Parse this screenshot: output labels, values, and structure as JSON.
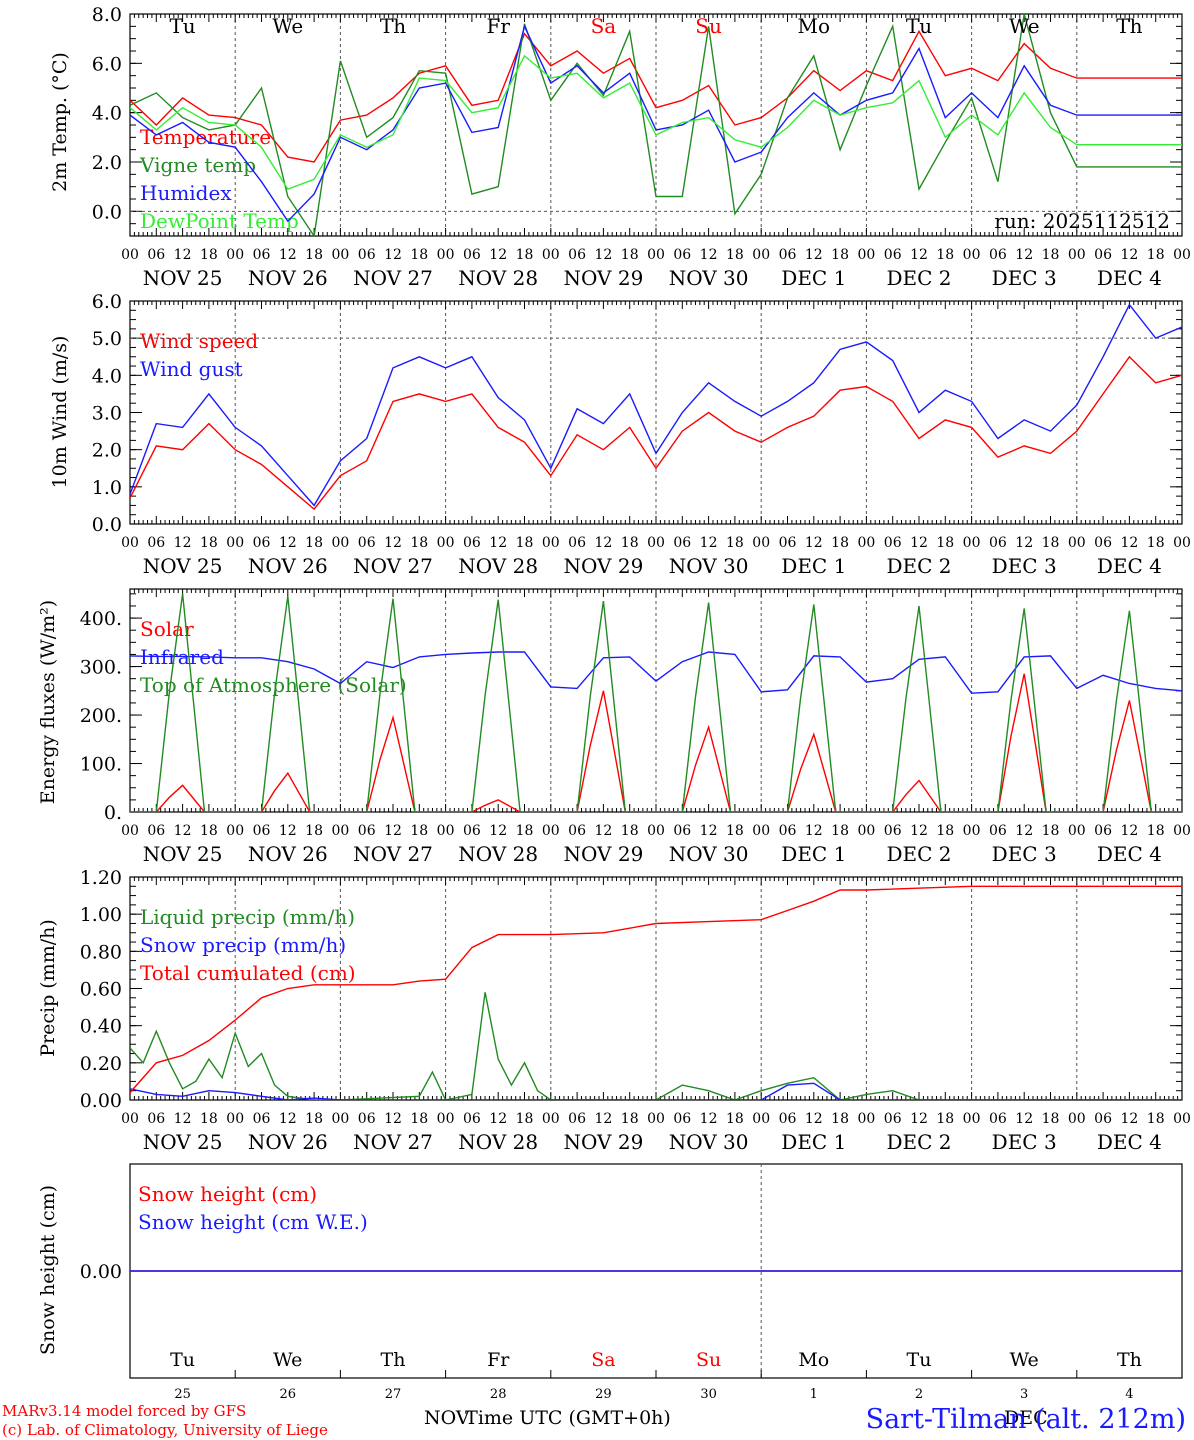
{
  "meta": {
    "model_line": "MARv3.14 model forced by GFS",
    "lab_line": "(c) Lab. of Climatology, University of Liege",
    "station": "Sart-Tilman (alt. 212m)",
    "run": "run: 2025112512",
    "x_axis_title": "Time UTC (GMT+0h)",
    "nov_label": "NOV",
    "dec_label": "DEC",
    "colors": {
      "red": "#ff0000",
      "green": "#228b22",
      "blue": "#1a1aff",
      "lime": "#33ee33",
      "black": "#000000"
    }
  },
  "days": {
    "weekdays": [
      "Tu",
      "We",
      "Th",
      "Fr",
      "Sa",
      "Su",
      "Mo",
      "Tu",
      "We",
      "Th"
    ],
    "weekend_index": [
      4,
      5
    ],
    "date_labels": [
      "NOV 25",
      "NOV 26",
      "NOV 27",
      "NOV 28",
      "NOV 29",
      "NOV 30",
      "DEC  1",
      "DEC  2",
      "DEC  3",
      "DEC  4"
    ],
    "day_numbers": [
      "25",
      "26",
      "27",
      "28",
      "29",
      "30",
      "1",
      "2",
      "3",
      "4"
    ],
    "hour_ticks": [
      "00",
      "06",
      "12",
      "18"
    ],
    "final_tick": "00"
  },
  "chart_data": [
    {
      "type": "line",
      "id": "temp",
      "ylabel": "2m Temp. (°C)",
      "ylim": [
        -1.0,
        8.0
      ],
      "yticks": [
        0,
        2,
        4,
        6,
        8
      ],
      "ytick_labels": [
        "0.0",
        "2.0",
        "4.0",
        "6.0",
        "8.0"
      ],
      "x_unit": "hours since NOV 25 00 UTC",
      "series": [
        {
          "name": "Temperature",
          "color": "#ff0000",
          "x": [
            0,
            6,
            12,
            18,
            24,
            30,
            36,
            42,
            48,
            54,
            60,
            66,
            72,
            78,
            84,
            90,
            96,
            102,
            108,
            114,
            120,
            126,
            132,
            138,
            144,
            150,
            156,
            162,
            168,
            174,
            180,
            186,
            192,
            198,
            204,
            210,
            216,
            222,
            228,
            234,
            240
          ],
          "values": [
            4.5,
            3.5,
            4.6,
            3.9,
            3.8,
            3.5,
            2.2,
            2.0,
            3.7,
            3.9,
            4.6,
            5.6,
            5.9,
            4.3,
            4.5,
            7.2,
            5.9,
            6.5,
            5.6,
            6.2,
            4.2,
            4.5,
            5.1,
            3.5,
            3.8,
            4.6,
            5.7,
            4.9,
            5.7,
            5.3,
            7.3,
            5.5,
            5.8,
            5.3,
            6.8,
            5.8,
            5.4,
            5.4,
            5.4,
            5.4,
            5.4
          ]
        },
        {
          "name": "Vigne temp",
          "color": "#228b22",
          "x": [
            0,
            6,
            12,
            18,
            24,
            30,
            36,
            42,
            48,
            54,
            60,
            66,
            72,
            78,
            84,
            90,
            96,
            102,
            108,
            114,
            120,
            126,
            132,
            138,
            144,
            150,
            156,
            162,
            168,
            174,
            180,
            186,
            192,
            198,
            204,
            210,
            216,
            222,
            228,
            234,
            240
          ],
          "values": [
            4.3,
            4.8,
            3.8,
            3.3,
            3.5,
            5.0,
            0.6,
            -1.0,
            6.1,
            3.0,
            3.8,
            5.7,
            5.6,
            0.7,
            1.0,
            7.6,
            4.5,
            6.0,
            4.7,
            7.3,
            0.6,
            0.6,
            7.5,
            -0.1,
            1.5,
            4.6,
            6.3,
            2.5,
            5.1,
            7.5,
            0.9,
            2.8,
            4.6,
            1.2,
            8.0,
            4.0,
            1.8,
            1.8,
            1.8,
            1.8,
            1.8
          ]
        },
        {
          "name": "Humidex",
          "color": "#1a1aff",
          "x": [
            0,
            6,
            12,
            18,
            24,
            30,
            36,
            42,
            48,
            54,
            60,
            66,
            72,
            78,
            84,
            90,
            96,
            102,
            108,
            114,
            120,
            126,
            132,
            138,
            144,
            150,
            156,
            162,
            168,
            174,
            180,
            186,
            192,
            198,
            204,
            210,
            216,
            222,
            228,
            234,
            240
          ],
          "values": [
            3.9,
            3.1,
            3.6,
            2.8,
            2.6,
            1.2,
            -0.4,
            0.7,
            3.0,
            2.5,
            3.3,
            5.0,
            5.2,
            3.2,
            3.4,
            7.5,
            5.2,
            5.9,
            4.8,
            5.6,
            3.3,
            3.5,
            4.1,
            2.0,
            2.4,
            3.8,
            4.8,
            3.9,
            4.5,
            4.8,
            6.6,
            3.8,
            4.8,
            3.8,
            5.9,
            4.3,
            3.9,
            3.9,
            3.9,
            3.9,
            3.9
          ]
        },
        {
          "name": "DewPoint Temp",
          "color": "#33ee33",
          "x": [
            0,
            6,
            12,
            18,
            24,
            30,
            36,
            42,
            48,
            54,
            60,
            66,
            72,
            78,
            84,
            90,
            96,
            102,
            108,
            114,
            120,
            126,
            132,
            138,
            144,
            150,
            156,
            162,
            168,
            174,
            180,
            186,
            192,
            198,
            204,
            210,
            216,
            222,
            228,
            234,
            240
          ],
          "values": [
            4.2,
            3.3,
            4.2,
            3.6,
            3.5,
            2.6,
            0.9,
            1.3,
            3.1,
            2.6,
            3.1,
            5.4,
            5.3,
            4.0,
            4.2,
            6.3,
            5.4,
            5.6,
            4.6,
            5.2,
            3.1,
            3.6,
            3.8,
            2.9,
            2.6,
            3.4,
            4.5,
            3.9,
            4.2,
            4.4,
            5.3,
            3.0,
            3.9,
            3.1,
            4.8,
            3.4,
            2.7,
            2.7,
            2.7,
            2.7,
            2.7
          ]
        }
      ]
    },
    {
      "type": "line",
      "id": "wind",
      "ylabel": "10m Wind (m/s)",
      "ylim": [
        0,
        6
      ],
      "yticks": [
        0,
        1,
        2,
        3,
        4,
        5,
        6
      ],
      "ytick_labels": [
        "0.0",
        "1.0",
        "2.0",
        "3.0",
        "4.0",
        "5.0",
        "6.0"
      ],
      "series": [
        {
          "name": "Wind speed",
          "color": "#ff0000",
          "x": [
            0,
            6,
            12,
            18,
            24,
            30,
            36,
            42,
            48,
            54,
            60,
            66,
            72,
            78,
            84,
            90,
            96,
            102,
            108,
            114,
            120,
            126,
            132,
            138,
            144,
            150,
            156,
            162,
            168,
            174,
            180,
            186,
            192,
            198,
            204,
            210,
            216,
            222,
            228,
            234,
            240
          ],
          "values": [
            0.7,
            2.1,
            2.0,
            2.7,
            2.0,
            1.6,
            1.0,
            0.4,
            1.3,
            1.7,
            3.3,
            3.5,
            3.3,
            3.5,
            2.6,
            2.2,
            1.3,
            2.4,
            2.0,
            2.6,
            1.5,
            2.5,
            3.0,
            2.5,
            2.2,
            2.6,
            2.9,
            3.6,
            3.7,
            3.3,
            2.3,
            2.8,
            2.6,
            1.8,
            2.1,
            1.9,
            2.5,
            3.5,
            4.5,
            3.8,
            4.0
          ]
        },
        {
          "name": "Wind gust",
          "color": "#1a1aff",
          "x": [
            0,
            6,
            12,
            18,
            24,
            30,
            36,
            42,
            48,
            54,
            60,
            66,
            72,
            78,
            84,
            90,
            96,
            102,
            108,
            114,
            120,
            126,
            132,
            138,
            144,
            150,
            156,
            162,
            168,
            174,
            180,
            186,
            192,
            198,
            204,
            210,
            216,
            222,
            228,
            234,
            240
          ],
          "values": [
            0.8,
            2.7,
            2.6,
            3.5,
            2.6,
            2.1,
            1.3,
            0.5,
            1.7,
            2.3,
            4.2,
            4.5,
            4.2,
            4.5,
            3.4,
            2.8,
            1.5,
            3.1,
            2.7,
            3.5,
            1.9,
            3.0,
            3.8,
            3.3,
            2.9,
            3.3,
            3.8,
            4.7,
            4.9,
            4.4,
            3.0,
            3.6,
            3.3,
            2.3,
            2.8,
            2.5,
            3.2,
            4.5,
            5.9,
            5.0,
            5.3
          ]
        }
      ]
    },
    {
      "type": "line",
      "id": "flux",
      "ylabel": "Energy fluxes (W/m²)",
      "ylim": [
        0,
        460
      ],
      "yticks": [
        0,
        100,
        200,
        300,
        400
      ],
      "ytick_labels": [
        "0.",
        "100.",
        "200.",
        "300.",
        "400."
      ],
      "series": [
        {
          "name": "Solar",
          "color": "#ff0000",
          "peaks_x": [
            12,
            36,
            60,
            84,
            108,
            132,
            156,
            180,
            204,
            228
          ],
          "peaks": [
            55,
            80,
            195,
            25,
            250,
            175,
            160,
            65,
            285,
            230
          ]
        },
        {
          "name": "Infrared",
          "color": "#1a1aff",
          "x": [
            0,
            6,
            12,
            18,
            24,
            30,
            36,
            42,
            48,
            54,
            60,
            66,
            72,
            78,
            84,
            90,
            96,
            102,
            108,
            114,
            120,
            126,
            132,
            138,
            144,
            150,
            156,
            162,
            168,
            174,
            180,
            186,
            192,
            198,
            204,
            210,
            216,
            222,
            228,
            234,
            240
          ],
          "values": [
            322,
            321,
            321,
            320,
            318,
            318,
            310,
            295,
            265,
            310,
            298,
            320,
            325,
            328,
            330,
            330,
            258,
            255,
            318,
            320,
            270,
            310,
            330,
            325,
            248,
            252,
            322,
            320,
            268,
            275,
            315,
            320,
            245,
            248,
            320,
            322,
            255,
            282,
            265,
            255,
            250
          ]
        },
        {
          "name": "Top of Atmosphere (Solar)",
          "color": "#228b22",
          "peaks_x": [
            12,
            36,
            60,
            84,
            108,
            132,
            156,
            180,
            204,
            228
          ],
          "peaks": [
            450,
            445,
            440,
            438,
            435,
            432,
            428,
            425,
            420,
            415
          ]
        }
      ]
    },
    {
      "type": "line",
      "id": "precip",
      "ylabel": "Precip (mm/h)",
      "ylim": [
        0,
        1.2
      ],
      "yticks": [
        0,
        0.2,
        0.4,
        0.6,
        0.8,
        1.0,
        1.2
      ],
      "ytick_labels": [
        "0.00",
        "0.20",
        "0.40",
        "0.60",
        "0.80",
        "1.00",
        "1.20"
      ],
      "series": [
        {
          "name": "Liquid precip (mm/h)",
          "color": "#228b22",
          "x": [
            0,
            3,
            6,
            9,
            12,
            15,
            18,
            21,
            24,
            27,
            30,
            33,
            36,
            42,
            48,
            66,
            69,
            72,
            78,
            81,
            84,
            87,
            90,
            93,
            96,
            120,
            126,
            132,
            138,
            144,
            150,
            156,
            162,
            168,
            174,
            180,
            240
          ],
          "values": [
            0.28,
            0.2,
            0.37,
            0.2,
            0.06,
            0.1,
            0.22,
            0.12,
            0.36,
            0.18,
            0.25,
            0.08,
            0.02,
            0.0,
            0.0,
            0.02,
            0.15,
            0.0,
            0.03,
            0.58,
            0.22,
            0.08,
            0.2,
            0.05,
            0.0,
            0.0,
            0.08,
            0.05,
            0.0,
            0.05,
            0.09,
            0.12,
            0.0,
            0.03,
            0.05,
            0.0,
            0.0
          ]
        },
        {
          "name": "Snow precip (mm/h)",
          "color": "#1a1aff",
          "x": [
            0,
            6,
            12,
            18,
            24,
            30,
            36,
            42,
            48,
            144,
            150,
            156,
            162,
            168,
            240
          ],
          "values": [
            0.06,
            0.03,
            0.02,
            0.05,
            0.04,
            0.02,
            0.0,
            0.01,
            0.0,
            0.0,
            0.08,
            0.09,
            0.0,
            0.0,
            0.0
          ]
        },
        {
          "name": "Total cumulated (cm)",
          "color": "#ff0000",
          "x": [
            0,
            6,
            12,
            18,
            24,
            30,
            36,
            42,
            48,
            60,
            66,
            72,
            78,
            84,
            96,
            108,
            120,
            132,
            144,
            150,
            156,
            162,
            168,
            192,
            240
          ],
          "values": [
            0.04,
            0.2,
            0.24,
            0.32,
            0.43,
            0.55,
            0.6,
            0.62,
            0.62,
            0.62,
            0.64,
            0.65,
            0.82,
            0.89,
            0.89,
            0.9,
            0.95,
            0.96,
            0.97,
            1.02,
            1.07,
            1.13,
            1.13,
            1.15,
            1.15
          ]
        }
      ]
    },
    {
      "type": "line",
      "id": "snow",
      "ylabel": "Snow height (cm)",
      "ylim": [
        -1,
        1
      ],
      "yticks": [
        0
      ],
      "ytick_labels": [
        "0.00"
      ],
      "series": [
        {
          "name": "Snow height (cm)",
          "color": "#ff0000",
          "x": [
            0,
            240
          ],
          "values": [
            0,
            0
          ]
        },
        {
          "name": "Snow height (cm W.E.)",
          "color": "#1a1aff",
          "x": [
            0,
            240
          ],
          "values": [
            0,
            0
          ]
        }
      ]
    }
  ]
}
